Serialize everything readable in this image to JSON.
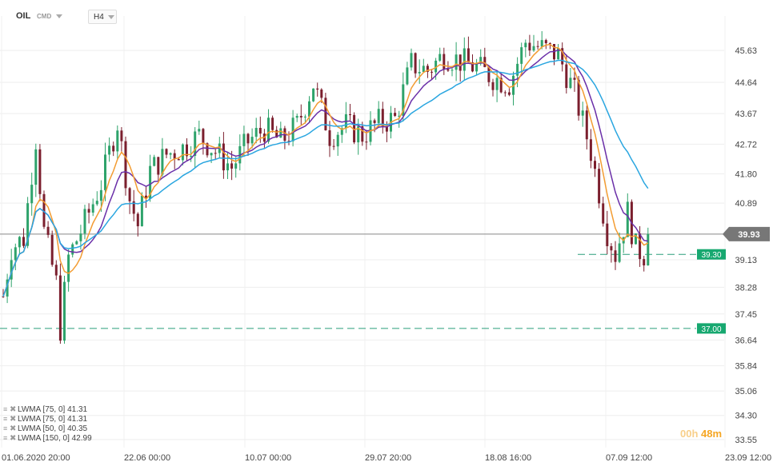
{
  "header": {
    "symbol": "OIL",
    "instrument_type": "CMD",
    "timeframe": "H4"
  },
  "indicators": [
    {
      "label": "LWMA [75, 0]",
      "value": "41.31"
    },
    {
      "label": "LWMA [75, 0]",
      "value": "41.31"
    },
    {
      "label": "LWMA [50, 0]",
      "value": "40.35"
    },
    {
      "label": "LWMA [150, 0]",
      "value": "42.99"
    }
  ],
  "candle_timer": {
    "hours": "00h",
    "minutes": "48m"
  },
  "colors": {
    "bull": "#2ea36b",
    "bear": "#7b1f2e",
    "ma_fast": "#f39c32",
    "ma_mid": "#6a2fa8",
    "ma_slow": "#2aa6e0",
    "price_tag": "#777777",
    "level_tag": "#17a870"
  },
  "chart_data": {
    "type": "candlestick",
    "y_ticks": [
      "45.63",
      "44.64",
      "43.67",
      "42.72",
      "41.80",
      "40.89",
      "39.13",
      "38.28",
      "37.45",
      "36.64",
      "35.84",
      "35.06",
      "34.30",
      "33.55"
    ],
    "x_ticks": [
      "01.06.2020",
      "20:00",
      "22.06",
      "00:00",
      "10.07",
      "00:00",
      "29.07",
      "20:00",
      "18.08",
      "16:00",
      "07.09",
      "12:00",
      "23.09",
      "12:00"
    ],
    "x_tick_labels": [
      "01.06.2020 20:00",
      "22.06 00:00",
      "10.07 00:00",
      "29.07 20:00",
      "18.08 16:00",
      "07.09 12:00",
      "23.09 12:00"
    ],
    "current_price": "39.93",
    "levels": [
      "39.30",
      "37.00"
    ],
    "ylim": [
      33.3,
      46.7
    ],
    "price_path": [
      [
        0,
        38.0
      ],
      [
        2,
        39.5
      ],
      [
        5,
        39.8
      ],
      [
        8,
        42.9
      ],
      [
        10,
        40.0
      ],
      [
        13,
        38.4
      ],
      [
        14,
        37.0
      ],
      [
        16,
        39.2
      ],
      [
        20,
        40.3
      ],
      [
        24,
        41.5
      ],
      [
        28,
        43.4
      ],
      [
        31,
        41.0
      ],
      [
        33,
        40.2
      ],
      [
        36,
        41.9
      ],
      [
        40,
        42.4
      ],
      [
        44,
        42.6
      ],
      [
        48,
        43.0
      ],
      [
        52,
        42.5
      ],
      [
        56,
        42.0
      ],
      [
        60,
        42.8
      ],
      [
        64,
        43.2
      ],
      [
        68,
        42.8
      ],
      [
        72,
        43.3
      ],
      [
        76,
        44.6
      ],
      [
        80,
        43.0
      ],
      [
        84,
        43.3
      ],
      [
        88,
        43.0
      ],
      [
        92,
        43.4
      ],
      [
        96,
        43.5
      ],
      [
        100,
        45.2
      ],
      [
        104,
        45.0
      ],
      [
        108,
        45.5
      ],
      [
        112,
        45.3
      ],
      [
        116,
        45.1
      ],
      [
        120,
        44.8
      ],
      [
        124,
        44.6
      ],
      [
        128,
        45.9
      ],
      [
        132,
        45.7
      ],
      [
        136,
        45.5
      ],
      [
        140,
        44.3
      ],
      [
        144,
        42.5
      ],
      [
        148,
        40.0
      ],
      [
        150,
        39.3
      ],
      [
        153,
        40.6
      ],
      [
        155,
        39.5
      ],
      [
        157,
        39.3
      ],
      [
        158,
        39.93
      ]
    ],
    "series": [
      {
        "name": "LWMA [75, 0]",
        "period": 75,
        "color": "#6a2fa8"
      },
      {
        "name": "LWMA [50, 0]",
        "period": 50,
        "color": "#f39c32"
      },
      {
        "name": "LWMA [150, 0]",
        "period": 150,
        "color": "#2aa6e0"
      }
    ]
  }
}
